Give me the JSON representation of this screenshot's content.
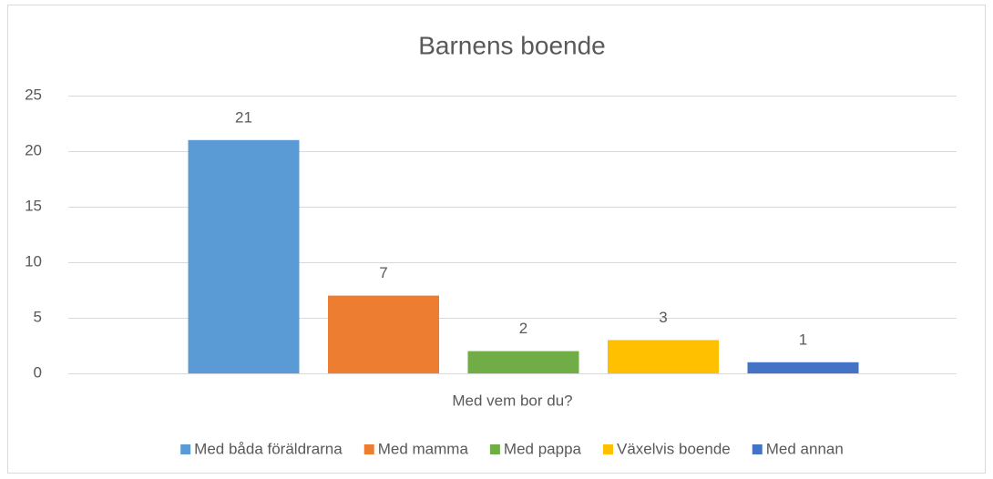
{
  "chart_data": {
    "type": "bar",
    "title": "Barnens boende",
    "categories": [
      "Med vem bor du?"
    ],
    "series": [
      {
        "name": "Med båda föräldrarna",
        "color": "#5b9bd5",
        "values": [
          21
        ]
      },
      {
        "name": "Med mamma",
        "color": "#ed7d31",
        "values": [
          7
        ]
      },
      {
        "name": "Med pappa",
        "color": "#70ad47",
        "values": [
          2
        ]
      },
      {
        "name": "Växelvis boende",
        "color": "#ffc000",
        "values": [
          3
        ]
      },
      {
        "name": "Med annan",
        "color": "#4472c4",
        "values": [
          1
        ]
      }
    ],
    "ylim": [
      0,
      25
    ],
    "yticks": [
      0,
      5,
      10,
      15,
      20,
      25
    ],
    "grid": true,
    "legend": "bottom"
  }
}
